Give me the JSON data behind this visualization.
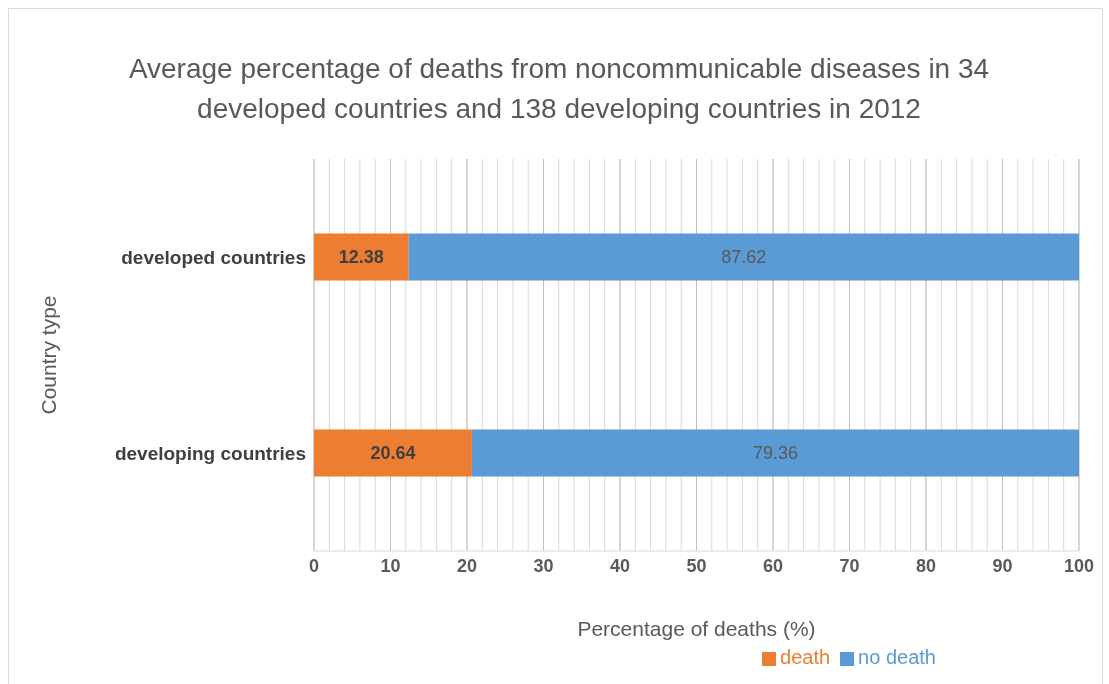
{
  "chart_data": {
    "type": "bar",
    "orientation": "horizontal",
    "stacked": true,
    "title": "Average percentage of deaths from noncommunicable diseases in 34 developed countries and 138 developing countries in 2012",
    "xlabel": "Percentage of deaths (%)",
    "ylabel": "Country type",
    "categories": [
      "developed countries",
      "developing countries"
    ],
    "series": [
      {
        "name": "death",
        "color": "#ed7d31",
        "values": [
          12.38,
          20.64
        ]
      },
      {
        "name": "no death",
        "color": "#5b9bd5",
        "values": [
          87.62,
          79.36
        ]
      }
    ],
    "xlim": [
      0,
      100
    ],
    "xticks": [
      0,
      {
        "value": 2,
        "label": null
      },
      {
        "value": 4,
        "label": null
      },
      {
        "value": 6,
        "label": null
      },
      {
        "value": 8,
        "label": null
      },
      10,
      {
        "value": 12,
        "label": null
      },
      {
        "value": 14,
        "label": null
      },
      {
        "value": 16,
        "label": null
      },
      {
        "value": 18,
        "label": null
      },
      20,
      {
        "value": 22,
        "label": null
      },
      {
        "value": 24,
        "label": null
      },
      {
        "value": 26,
        "label": null
      },
      {
        "value": 28,
        "label": null
      },
      30,
      {
        "value": 32,
        "label": null
      },
      {
        "value": 34,
        "label": null
      },
      {
        "value": 36,
        "label": null
      },
      {
        "value": 38,
        "label": null
      },
      40,
      {
        "value": 42,
        "label": null
      },
      {
        "value": 44,
        "label": null
      },
      {
        "value": 46,
        "label": null
      },
      {
        "value": 48,
        "label": null
      },
      50,
      {
        "value": 52,
        "label": null
      },
      {
        "value": 54,
        "label": null
      },
      {
        "value": 56,
        "label": null
      },
      {
        "value": 58,
        "label": null
      },
      60,
      {
        "value": 62,
        "label": null
      },
      {
        "value": 64,
        "label": null
      },
      {
        "value": 66,
        "label": null
      },
      {
        "value": 68,
        "label": null
      },
      70,
      {
        "value": 72,
        "label": null
      },
      {
        "value": 74,
        "label": null
      },
      {
        "value": 76,
        "label": null
      },
      {
        "value": 78,
        "label": null
      },
      80,
      {
        "value": 82,
        "label": null
      },
      {
        "value": 84,
        "label": null
      },
      {
        "value": 86,
        "label": null
      },
      {
        "value": 88,
        "label": null
      },
      90,
      {
        "value": 92,
        "label": null
      },
      {
        "value": 94,
        "label": null
      },
      {
        "value": 96,
        "label": null
      },
      {
        "value": 98,
        "label": null
      },
      100
    ],
    "grid": "x",
    "data_labels": true,
    "legend": "bottom"
  }
}
